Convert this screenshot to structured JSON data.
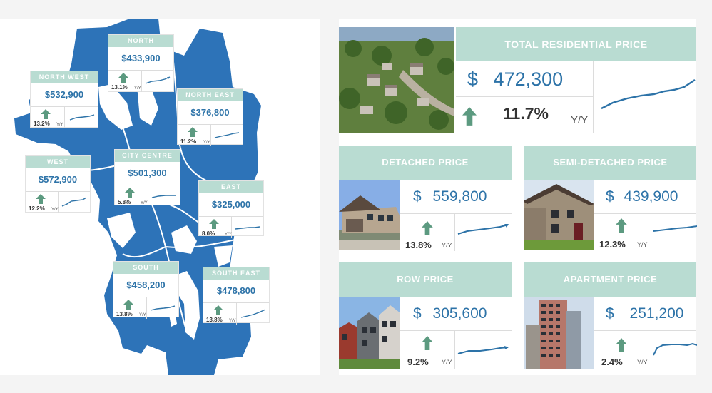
{
  "colors": {
    "accent": "#b9dcd2",
    "price": "#2d73a8",
    "map": "#2d73b8",
    "arrow": "#5c9a80"
  },
  "map_regions": [
    {
      "name": "NORTH",
      "price": "$433,900",
      "change": "13.1%",
      "yy": "Y/Y"
    },
    {
      "name": "NORTH WEST",
      "price": "$532,900",
      "change": "13.2%",
      "yy": "Y/Y"
    },
    {
      "name": "NORTH EAST",
      "price": "$376,800",
      "change": "11.2%",
      "yy": "Y/Y"
    },
    {
      "name": "WEST",
      "price": "$572,900",
      "change": "12.2%",
      "yy": "Y/Y"
    },
    {
      "name": "CITY CENTRE",
      "price": "$501,300",
      "change": "5.8%",
      "yy": "Y/Y"
    },
    {
      "name": "EAST",
      "price": "$325,000",
      "change": "8.0%",
      "yy": "Y/Y"
    },
    {
      "name": "SOUTH",
      "price": "$458,200",
      "change": "13.8%",
      "yy": "Y/Y"
    },
    {
      "name": "SOUTH EAST",
      "price": "$478,800",
      "change": "13.8%",
      "yy": "Y/Y"
    }
  ],
  "price_cards": [
    {
      "title": "TOTAL RESIDENTIAL PRICE",
      "currency": "$",
      "price": "472,300",
      "change": "11.7%",
      "yy": "Y/Y",
      "photo": "aerial-neighbourhood-photo"
    },
    {
      "title": "DETACHED PRICE",
      "currency": "$",
      "price": "559,800",
      "change": "13.8%",
      "yy": "Y/Y",
      "photo": "detached-house-photo"
    },
    {
      "title": "SEMI-DETACHED PRICE",
      "currency": "$",
      "price": "439,900",
      "change": "12.3%",
      "yy": "Y/Y",
      "photo": "semi-detached-house-photo"
    },
    {
      "title": "ROW PRICE",
      "currency": "$",
      "price": "305,600",
      "change": "9.2%",
      "yy": "Y/Y",
      "photo": "row-house-photo"
    },
    {
      "title": "APARTMENT PRICE",
      "currency": "$",
      "price": "251,200",
      "change": "2.4%",
      "yy": "Y/Y",
      "photo": "apartment-building-photo"
    }
  ]
}
